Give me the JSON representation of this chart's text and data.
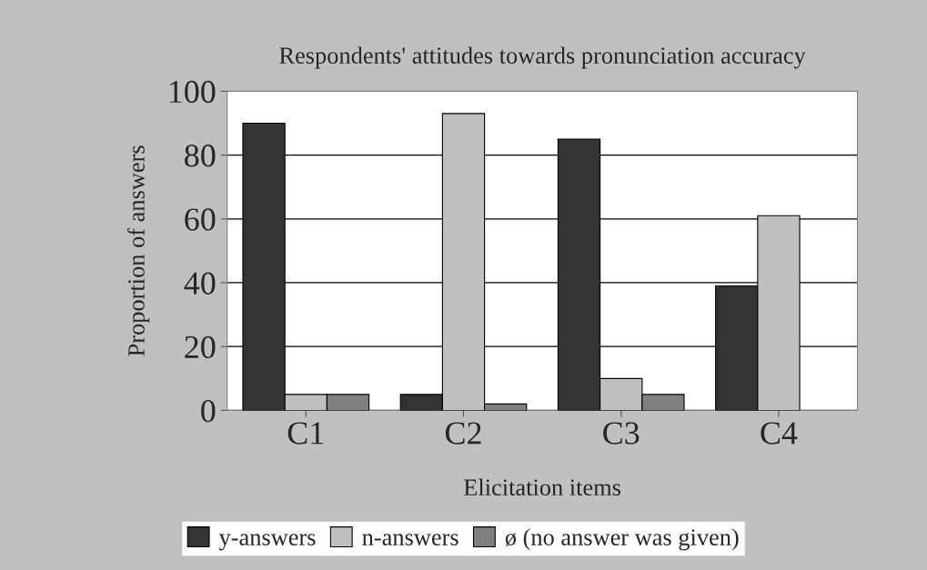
{
  "chart_data": {
    "type": "bar",
    "title": "Respondents' attitudes towards pronunciation accuracy",
    "xlabel": "Elicitation items",
    "ylabel": "Proportion of answers",
    "categories": [
      "C1",
      "C2",
      "C3",
      "C4"
    ],
    "series": [
      {
        "name": "y-answers",
        "color": "#333333",
        "values": [
          90,
          5,
          85,
          39
        ]
      },
      {
        "name": "n-answers",
        "color": "#c0c0c0",
        "values": [
          5,
          93,
          10,
          61
        ]
      },
      {
        "name": "ø (no answer was given)",
        "color": "#808080",
        "values": [
          5,
          2,
          5,
          0
        ]
      }
    ],
    "ylim": [
      0,
      100
    ],
    "yticks": [
      0,
      20,
      40,
      60,
      80,
      100
    ],
    "grid": "y",
    "legend": "bottom"
  }
}
